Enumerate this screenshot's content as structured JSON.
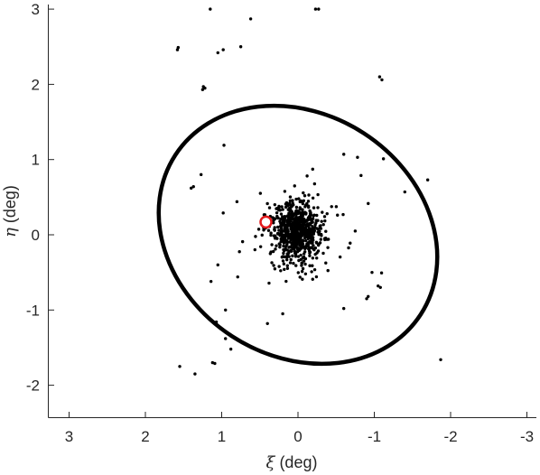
{
  "chart_data": {
    "type": "scatter",
    "xlabel_symbol": "ξ",
    "xlabel_unit": "(deg)",
    "ylabel_symbol": "η",
    "ylabel_unit": "(deg)",
    "xlim": [
      3.3,
      -3.3
    ],
    "ylim": [
      -2.4,
      3.0
    ],
    "x_reversed": true,
    "xticks": [
      3,
      2,
      1,
      0,
      -1,
      -2,
      -3
    ],
    "yticks": [
      -2,
      -1,
      0,
      1,
      2,
      3
    ],
    "grid": false,
    "box": "left-bottom",
    "ellipse": {
      "center": [
        0.0,
        0.0
      ],
      "color": "#000000",
      "line": "thick"
    },
    "marker": {
      "x": 0.42,
      "y": 0.17,
      "color": "#e3191c",
      "style": "open-circle"
    },
    "outliers": [
      [
        1.15,
        3.0
      ],
      [
        0.62,
        2.87
      ],
      [
        -0.23,
        3.0
      ],
      [
        -0.27,
        3.0
      ],
      [
        1.57,
        2.49
      ],
      [
        1.58,
        2.46
      ],
      [
        1.05,
        2.42
      ],
      [
        0.98,
        2.46
      ],
      [
        0.75,
        2.5
      ],
      [
        -1.07,
        2.1
      ],
      [
        -1.1,
        2.06
      ],
      [
        1.22,
        1.95
      ],
      [
        1.24,
        1.97
      ],
      [
        1.25,
        1.93
      ],
      [
        0.97,
        1.19
      ],
      [
        -0.6,
        1.07
      ],
      [
        -0.78,
        1.03
      ],
      [
        -1.12,
        1.01
      ],
      [
        1.27,
        0.8
      ],
      [
        1.37,
        0.64
      ],
      [
        1.4,
        0.62
      ],
      [
        -1.4,
        0.57
      ],
      [
        -1.7,
        0.73
      ],
      [
        0.25,
        0.35
      ],
      [
        0.98,
        0.29
      ],
      [
        0.8,
        0.44
      ],
      [
        -0.97,
        -0.5
      ],
      [
        -0.75,
        0.05
      ],
      [
        0.31,
        0.07
      ],
      [
        0.2,
        0.2
      ],
      [
        1.05,
        -0.4
      ],
      [
        -0.9,
        -0.85
      ],
      [
        -0.92,
        -0.82
      ],
      [
        -1.08,
        -0.7
      ],
      [
        -1.05,
        -0.68
      ],
      [
        -0.6,
        -0.98
      ],
      [
        0.2,
        -1.05
      ],
      [
        0.4,
        -1.18
      ],
      [
        0.95,
        -1.0
      ],
      [
        1.14,
        -0.62
      ],
      [
        1.07,
        -1.16
      ],
      [
        0.95,
        -1.38
      ],
      [
        0.88,
        -1.52
      ],
      [
        1.12,
        -1.7
      ],
      [
        1.09,
        -1.71
      ],
      [
        1.55,
        -1.75
      ],
      [
        1.35,
        -1.85
      ],
      [
        -1.87,
        -1.66
      ],
      [
        0.79,
        -0.56
      ]
    ],
    "cluster": {
      "center": [
        0.0,
        0.05
      ],
      "count": 720,
      "spread_x": 0.17,
      "spread_y": 0.19
    }
  }
}
